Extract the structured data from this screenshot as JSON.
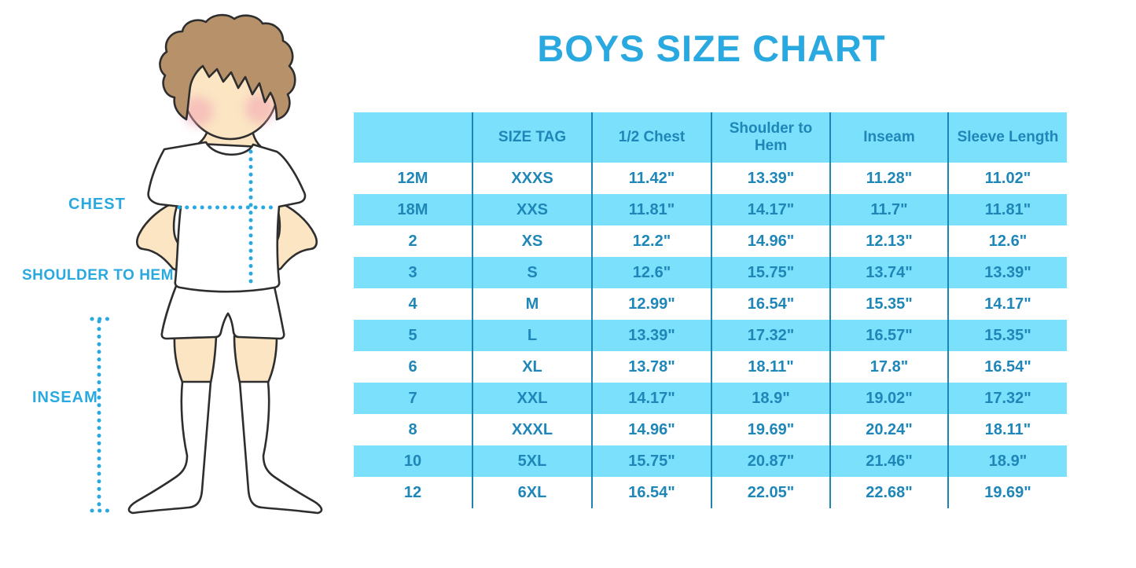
{
  "title": "BOYS SIZE CHART",
  "colors": {
    "accent": "#29A9E0",
    "table-text": "#1F86B8",
    "stripe": "#7BE0FB",
    "divider": "#1C85B8",
    "hair": "#B6916A",
    "skin": "#FBE5C3",
    "cheek": "#F2A4B4",
    "outline": "#2E2E2E",
    "garment": "#FFFFFF"
  },
  "figure": {
    "labels": {
      "chest": "CHEST",
      "shoulder_to_hem": "SHOULDER TO HEM",
      "inseam": "INSEAM"
    }
  },
  "chart_data": {
    "type": "table",
    "title": "BOYS SIZE CHART",
    "columns": [
      "",
      "SIZE TAG",
      "1/2 Chest",
      "Shoulder to Hem",
      "Inseam",
      "Sleeve Length"
    ],
    "rows": [
      [
        "12M",
        "XXXS",
        "11.42\"",
        "13.39\"",
        "11.28\"",
        "11.02\""
      ],
      [
        "18M",
        "XXS",
        "11.81\"",
        "14.17\"",
        "11.7\"",
        "11.81\""
      ],
      [
        "2",
        "XS",
        "12.2\"",
        "14.96\"",
        "12.13\"",
        "12.6\""
      ],
      [
        "3",
        "S",
        "12.6\"",
        "15.75\"",
        "13.74\"",
        "13.39\""
      ],
      [
        "4",
        "M",
        "12.99\"",
        "16.54\"",
        "15.35\"",
        "14.17\""
      ],
      [
        "5",
        "L",
        "13.39\"",
        "17.32\"",
        "16.57\"",
        "15.35\""
      ],
      [
        "6",
        "XL",
        "13.78\"",
        "18.11\"",
        "17.8\"",
        "16.54\""
      ],
      [
        "7",
        "XXL",
        "14.17\"",
        "18.9\"",
        "19.02\"",
        "17.32\""
      ],
      [
        "8",
        "XXXL",
        "14.96\"",
        "19.69\"",
        "20.24\"",
        "18.11\""
      ],
      [
        "10",
        "5XL",
        "15.75\"",
        "20.87\"",
        "21.46\"",
        "18.9\""
      ],
      [
        "12",
        "6XL",
        "16.54\"",
        "22.05\"",
        "22.68\"",
        "19.69\""
      ]
    ],
    "layout": {
      "striping": "alternate rows light-cyan starting at second data row",
      "grid": "vertical dividers only, no outer border",
      "header_background": "light-cyan",
      "units": "inches"
    }
  }
}
